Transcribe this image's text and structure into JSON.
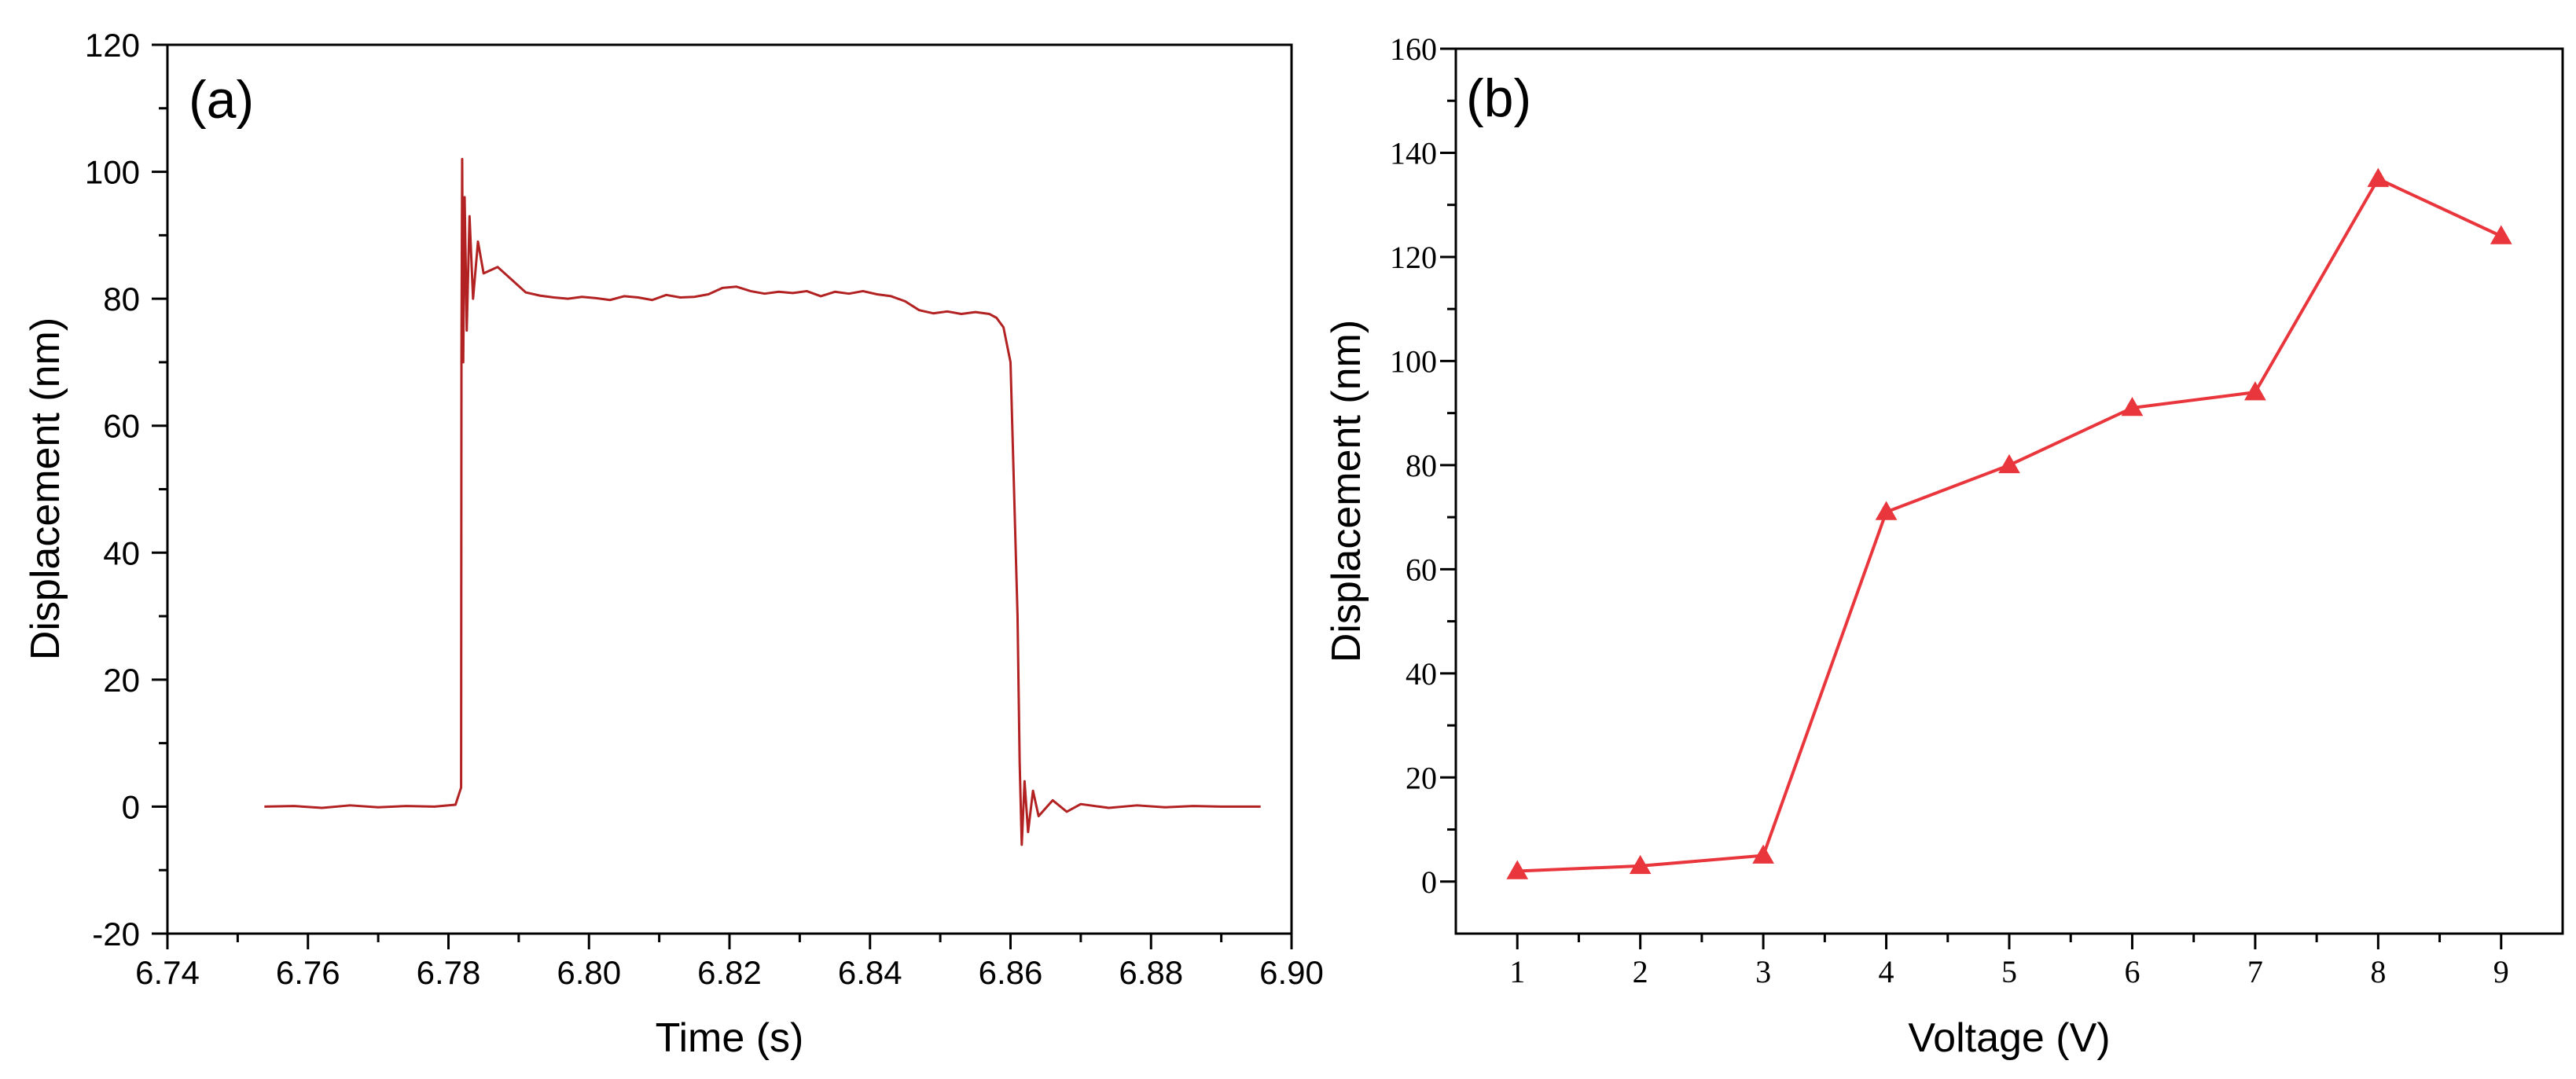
{
  "chart_data": [
    {
      "panel_label": "(a)",
      "type": "line",
      "xlabel": "Time (s)",
      "ylabel": "Displacement (nm)",
      "xlim": [
        6.74,
        6.9
      ],
      "ylim": [
        -20,
        120
      ],
      "xticks": [
        "6.74",
        "6.76",
        "6.78",
        "6.80",
        "6.82",
        "6.84",
        "6.86",
        "6.88",
        "6.90"
      ],
      "yticks": [
        "-20",
        "0",
        "20",
        "40",
        "60",
        "80",
        "100",
        "120"
      ],
      "grid": false,
      "series": [
        {
          "name": "Displacement",
          "color": "#b22222",
          "x": [
            6.7538,
            6.758,
            6.762,
            6.766,
            6.77,
            6.774,
            6.778,
            6.781,
            6.7818,
            6.78185,
            6.78195,
            6.7821,
            6.7823,
            6.7826,
            6.783,
            6.7835,
            6.7842,
            6.785,
            6.787,
            6.789,
            6.791,
            6.793,
            6.795,
            6.797,
            6.799,
            6.801,
            6.803,
            6.805,
            6.807,
            6.809,
            6.811,
            6.813,
            6.815,
            6.817,
            6.819,
            6.821,
            6.823,
            6.825,
            6.827,
            6.829,
            6.831,
            6.833,
            6.835,
            6.837,
            6.839,
            6.841,
            6.843,
            6.845,
            6.847,
            6.849,
            6.851,
            6.853,
            6.855,
            6.857,
            6.858,
            6.859,
            6.86,
            6.861,
            6.8613,
            6.8616,
            6.862,
            6.8625,
            6.8632,
            6.864,
            6.866,
            6.868,
            6.87,
            6.874,
            6.878,
            6.882,
            6.886,
            6.89,
            6.8956
          ],
          "y": [
            0.0,
            0.1,
            -0.2,
            0.2,
            -0.1,
            0.1,
            0.0,
            0.3,
            3.0,
            70.0,
            102.0,
            70.0,
            96.0,
            75.0,
            93.0,
            80.0,
            89.0,
            84.0,
            85.0,
            83.0,
            81.0,
            80.5,
            80.2,
            80.0,
            80.3,
            80.1,
            79.8,
            80.4,
            80.2,
            79.8,
            80.6,
            80.2,
            80.3,
            80.7,
            81.7,
            81.9,
            81.2,
            80.8,
            81.1,
            80.9,
            81.2,
            80.4,
            81.1,
            80.8,
            81.2,
            80.7,
            80.4,
            79.6,
            78.2,
            77.7,
            78.0,
            77.6,
            77.9,
            77.6,
            77.0,
            75.5,
            70.0,
            30.0,
            7.0,
            -6.0,
            4.0,
            -4.0,
            2.5,
            -1.5,
            1.0,
            -0.8,
            0.4,
            -0.2,
            0.2,
            -0.1,
            0.1,
            0.0,
            0.0
          ]
        }
      ]
    },
    {
      "panel_label": "(b)",
      "type": "line",
      "xlabel": "Voltage (V)",
      "ylabel": "Displacement (nm)",
      "xlim": [
        0.5,
        9.5
      ],
      "ylim": [
        -10,
        160
      ],
      "xticks": [
        "1",
        "2",
        "3",
        "4",
        "5",
        "6",
        "7",
        "8",
        "9"
      ],
      "yticks": [
        "0",
        "20",
        "40",
        "60",
        "80",
        "100",
        "120",
        "140",
        "160"
      ],
      "grid": false,
      "marker": "triangle",
      "series": [
        {
          "name": "Displacement",
          "color": "#e8363c",
          "x": [
            1,
            2,
            3,
            4,
            5,
            6,
            7,
            8,
            9
          ],
          "y": [
            2,
            3,
            5,
            71,
            80,
            91,
            94,
            135,
            124
          ]
        }
      ]
    }
  ]
}
